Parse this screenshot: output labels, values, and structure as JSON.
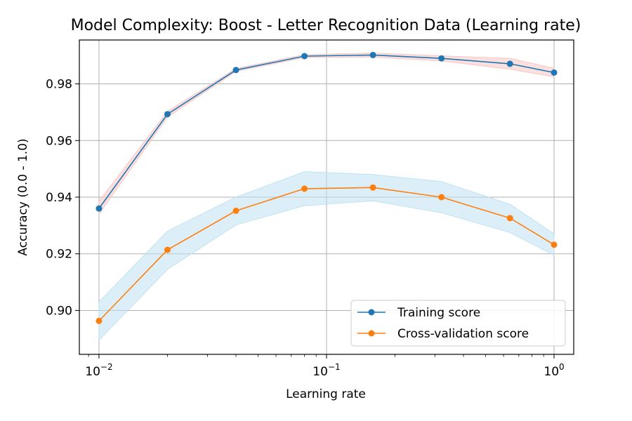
{
  "chart_data": {
    "type": "line",
    "title": "Model Complexity: Boost - Letter Recognition Data (Learning rate)",
    "xlabel": "Learning rate",
    "ylabel": "Accuracy (0.0 - 1.0)",
    "xscale": "log",
    "x": [
      0.01,
      0.02,
      0.04,
      0.08,
      0.16,
      0.32,
      0.64,
      1.0
    ],
    "xlim": [
      0.0082,
      1.22
    ],
    "ylim": [
      0.8845,
      0.9955
    ],
    "grid": true,
    "legend_position": "lower right",
    "x_tick_values": [
      0.01,
      0.1,
      1
    ],
    "x_tick_labels": [
      {
        "base": "10",
        "exp": "−2"
      },
      {
        "base": "10",
        "exp": "−1"
      },
      {
        "base": "10",
        "exp": "0"
      }
    ],
    "y_ticks": [
      0.9,
      0.92,
      0.94,
      0.96,
      0.98
    ],
    "y_tick_labels": [
      "0.90",
      "0.92",
      "0.94",
      "0.96",
      "0.98"
    ],
    "series": [
      {
        "name": "Training score",
        "color": "#1f77b4",
        "band_color": "#f7c6c2",
        "values": [
          0.936,
          0.9693,
          0.9849,
          0.9898,
          0.9902,
          0.989,
          0.9871,
          0.984
        ],
        "lower": [
          0.934,
          0.9683,
          0.9844,
          0.9893,
          0.9895,
          0.9881,
          0.9852,
          0.9825
        ],
        "upper": [
          0.9385,
          0.9703,
          0.9854,
          0.9903,
          0.9909,
          0.9899,
          0.989,
          0.9855
        ]
      },
      {
        "name": "Cross-validation score",
        "color": "#ff7f0e",
        "band_color": "#bfe2f2",
        "values": [
          0.8963,
          0.9214,
          0.9352,
          0.943,
          0.9434,
          0.94,
          0.9326,
          0.9232
        ],
        "lower": [
          0.8895,
          0.9145,
          0.9302,
          0.937,
          0.9387,
          0.9345,
          0.9275,
          0.9195
        ],
        "upper": [
          0.903,
          0.928,
          0.94,
          0.949,
          0.948,
          0.9455,
          0.9375,
          0.927
        ]
      }
    ]
  }
}
